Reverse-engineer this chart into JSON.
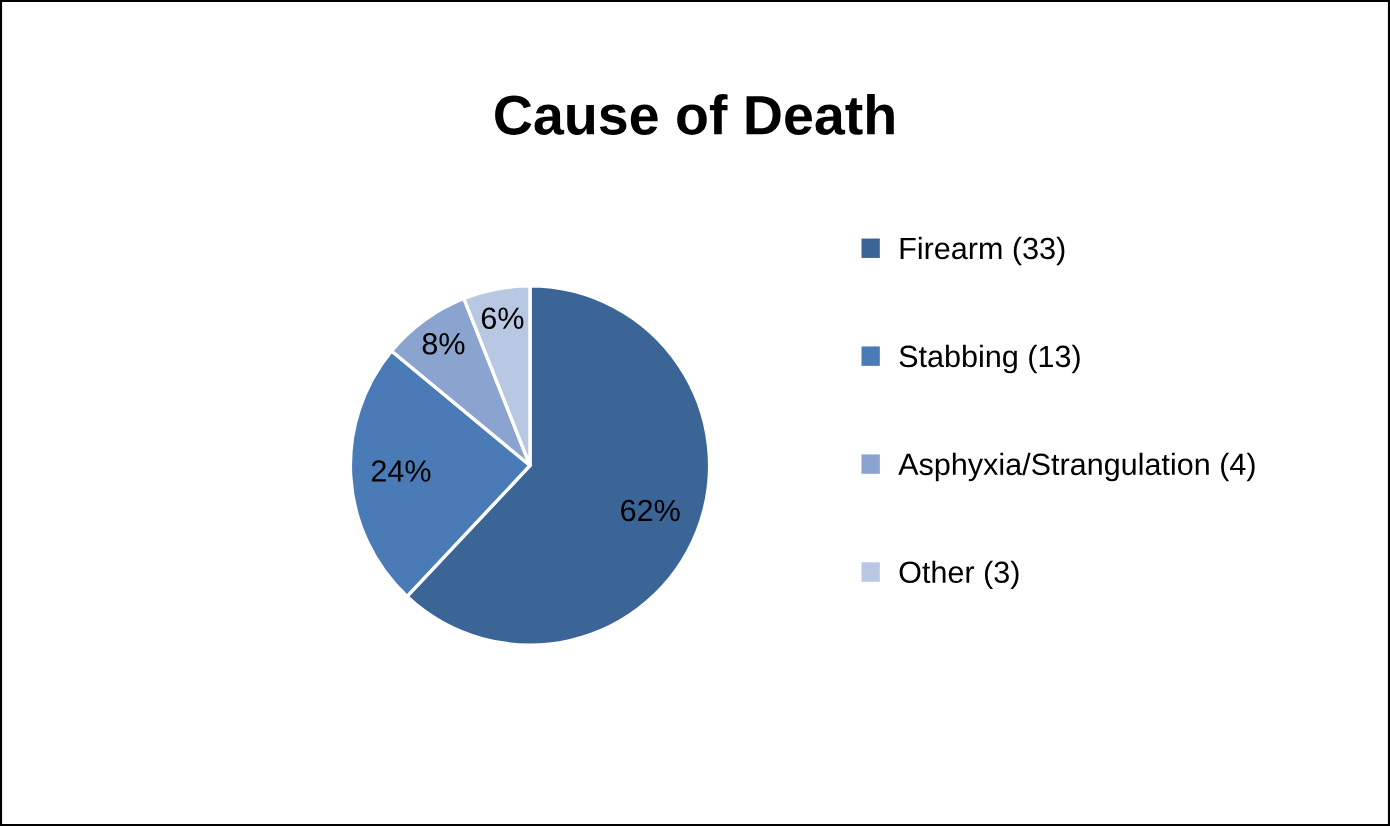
{
  "chart_data": {
    "type": "pie",
    "title": "Cause of Death",
    "categories": [
      "Firearm (33)",
      "Stabbing (13)",
      "Asphyxia/Strangulation (4)",
      "Other (3)"
    ],
    "values": [
      62,
      24,
      8,
      6
    ],
    "colors": [
      "#3c6597",
      "#4a7bb7",
      "#8aa3cf",
      "#b8c8e2"
    ],
    "value_labels": [
      "62%",
      "24%",
      "8%",
      "6%"
    ],
    "legend": "right"
  }
}
